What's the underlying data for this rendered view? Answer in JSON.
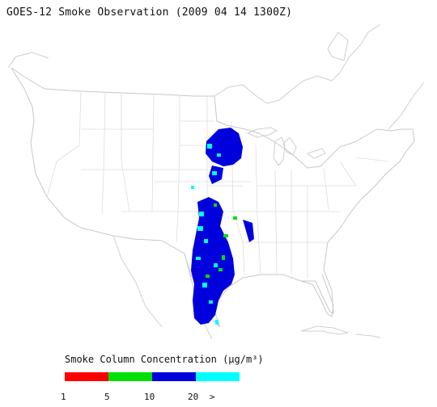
{
  "title": "GOES-12 Smoke Observation (2009 04 14  1300Z)",
  "legend": {
    "title": "Smoke Column Concentration (μg/m³)",
    "bins": [
      {
        "from": "1",
        "to": "5",
        "color": "#ff0000"
      },
      {
        "from": "5",
        "to": "10",
        "color": "#00e000"
      },
      {
        "from": "10",
        "to": "20",
        "color": "#0000dd"
      },
      {
        "from": "20",
        "to": ">",
        "color": "#00ffff"
      }
    ],
    "tick_labels": [
      "1",
      "5",
      "10",
      "20",
      ">"
    ]
  },
  "map": {
    "region": "Continental United States",
    "outline_color": "#cfcfcf",
    "state_border_color": "#dddddd"
  }
}
